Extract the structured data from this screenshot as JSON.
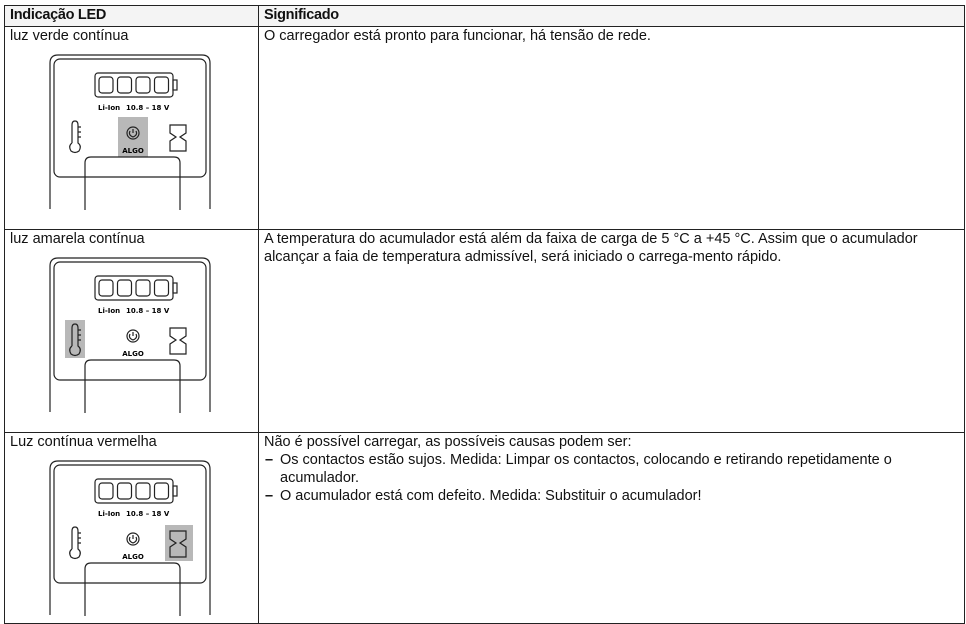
{
  "table": {
    "header": [
      "Indicação LED",
      "Significado"
    ],
    "rows": [
      {
        "indicator": "luz verde contínua",
        "icon": {
          "chemistry": "Li-Ion",
          "voltage": "10.8 – 18 V",
          "mode": "ALGO"
        },
        "meaning": "O carregador está pronto para funcionar, há tensão de rede."
      },
      {
        "indicator": "luz amarela contínua",
        "icon": {
          "chemistry": "Li-Ion",
          "voltage": "10.8 – 18 V",
          "mode": "ALGO"
        },
        "meaning": "A temperatura do acumulador está além da faixa de carga de 5 °C a +45 °C. Assim que o acumulador alcançar a faia de temperatura admissível, será iniciado o carrega-mento rápido."
      },
      {
        "indicator": "Luz contínua vermelha",
        "icon": {
          "chemistry": "Li-Ion",
          "voltage": "10.8 – 18 V",
          "mode": "ALGO"
        },
        "meaning": "Não é possível carregar, as possíveis causas podem ser:",
        "bullets": [
          "Os contactos estão sujos. Medida: Limpar os contactos, colocando e retirando repetidamente o acumulador.",
          "O acumulador está com defeito. Medida: Substituir o acumulador!"
        ]
      }
    ]
  }
}
